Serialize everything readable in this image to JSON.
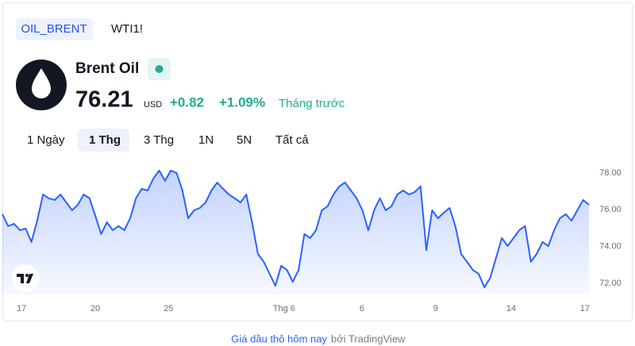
{
  "tabs": [
    "OIL_BRENT",
    "WTI1!"
  ],
  "header": {
    "name": "Brent Oil",
    "price": "76.21",
    "currency": "USD",
    "change": "+0.82",
    "change_percent": "+1.09%",
    "period": "Tháng trước"
  },
  "ranges": [
    "1 Ngày",
    "1 Thg",
    "3 Thg",
    "1N",
    "5N",
    "Tất cả"
  ],
  "chart_data": {
    "type": "area",
    "color": "#2962ff",
    "values": [
      75.76,
      75.11,
      75.24,
      74.89,
      74.98,
      74.25,
      75.41,
      76.83,
      76.62,
      76.53,
      76.83,
      76.4,
      75.97,
      76.27,
      76.83,
      76.62,
      75.67,
      74.68,
      75.32,
      74.89,
      75.11,
      74.89,
      75.54,
      76.62,
      77.14,
      77.05,
      77.7,
      78.13,
      77.57,
      78.13,
      78.0,
      77.05,
      75.54,
      75.97,
      76.1,
      76.4,
      77.05,
      77.48,
      77.14,
      76.83,
      76.62,
      76.4,
      76.83,
      75.32,
      73.6,
      73.17,
      72.52,
      71.87,
      72.95,
      72.73,
      72.08,
      72.73,
      74.68,
      74.46,
      74.89,
      75.97,
      76.19,
      76.83,
      77.27,
      77.48,
      77.05,
      76.62,
      75.97,
      74.89,
      75.97,
      76.62,
      75.97,
      76.19,
      76.83,
      77.05,
      76.83,
      76.96,
      77.27,
      73.81,
      75.97,
      75.54,
      75.84,
      76.1,
      75.11,
      73.6,
      73.17,
      72.73,
      72.52,
      71.78,
      72.3,
      73.38,
      74.46,
      74.03,
      74.46,
      74.89,
      75.11,
      73.17,
      73.6,
      74.25,
      74.03,
      74.89,
      75.54,
      75.76,
      75.41,
      75.97,
      76.53,
      76.27
    ],
    "xlim": [
      0,
      101
    ],
    "xticks": [
      {
        "value": 3.3,
        "label": "17"
      },
      {
        "value": 16.0,
        "label": "20"
      },
      {
        "value": 28.6,
        "label": "25"
      },
      {
        "value": 48.5,
        "label": "Thg 6"
      },
      {
        "value": 61.9,
        "label": "6"
      },
      {
        "value": 74.6,
        "label": "9"
      },
      {
        "value": 87.6,
        "label": "14"
      },
      {
        "value": 100.3,
        "label": "17"
      }
    ],
    "ylim": [
      71.4,
      78.6
    ],
    "yticks": [
      {
        "value": 72,
        "label": "72.00"
      },
      {
        "value": 74,
        "label": "74.00"
      },
      {
        "value": 76,
        "label": "76.00"
      },
      {
        "value": 78,
        "label": "78.00"
      }
    ]
  },
  "footer": {
    "link": "Giá dầu thô hôm nay",
    "by": "bởi TradingView"
  }
}
